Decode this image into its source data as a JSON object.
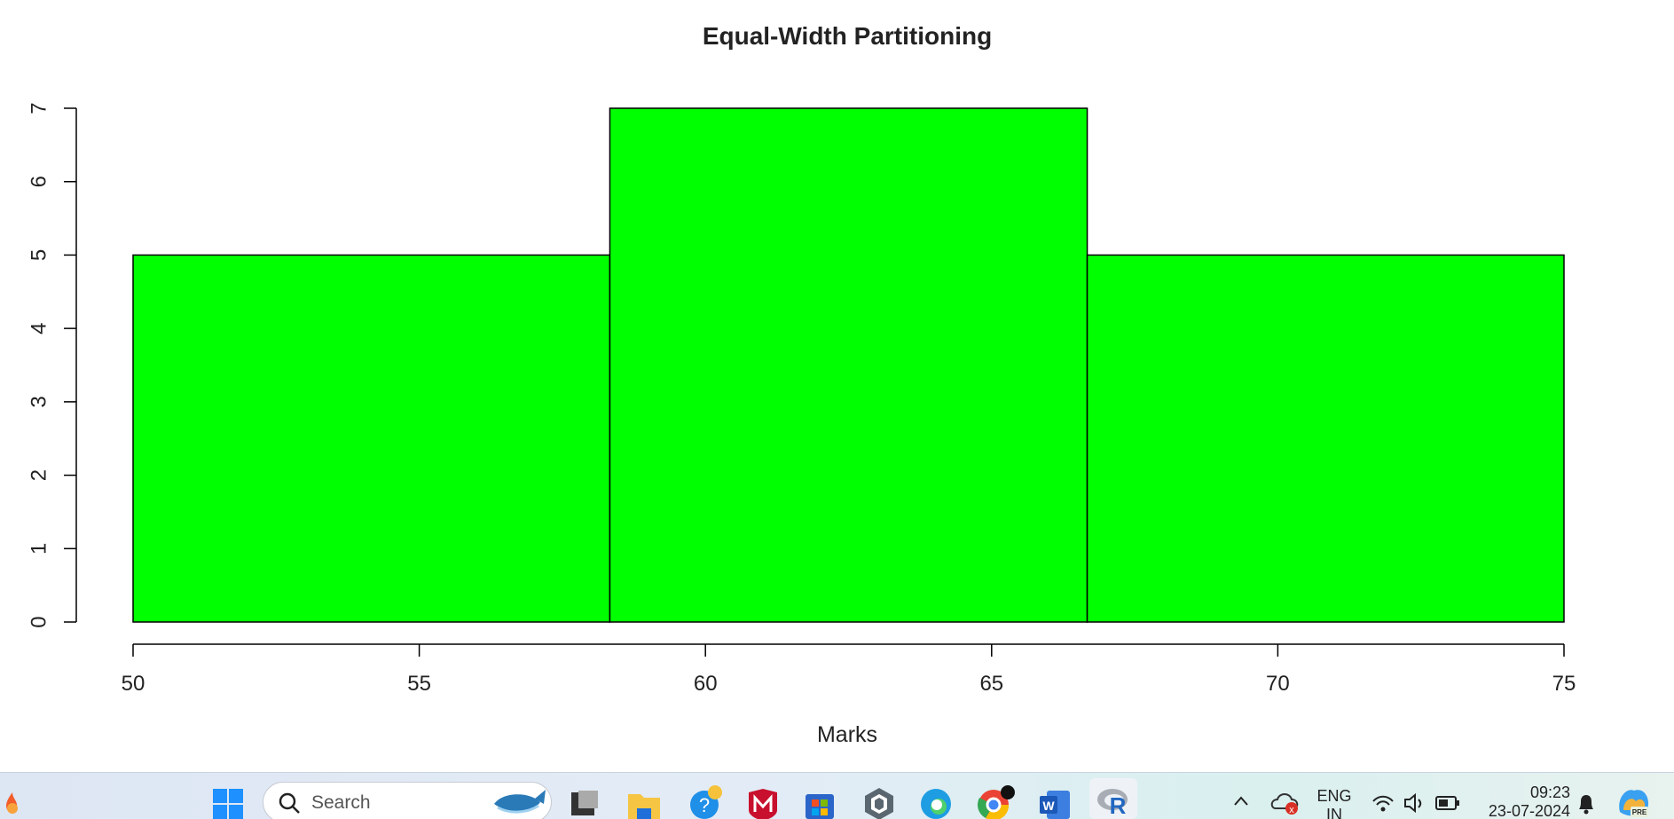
{
  "chart_data": {
    "type": "histogram",
    "title": "Equal-Width Partitioning",
    "xlabel": "Marks",
    "ylabel": "",
    "bins": [
      {
        "start": 50.0,
        "end": 58.33,
        "count": 5
      },
      {
        "start": 58.33,
        "end": 66.67,
        "count": 7
      },
      {
        "start": 66.67,
        "end": 75.0,
        "count": 5
      }
    ],
    "xlim": [
      50,
      75
    ],
    "ylim": [
      0,
      7
    ],
    "xticks": [
      "50",
      "55",
      "60",
      "65",
      "70",
      "75"
    ],
    "yticks": [
      "0",
      "1",
      "2",
      "3",
      "4",
      "5",
      "6",
      "7"
    ],
    "bar_color": "#00ff00",
    "grid": false,
    "legend": "none"
  },
  "taskbar": {
    "search_placeholder": "Search",
    "language": "ENG",
    "region": "IN",
    "time": "09:23",
    "date": "23-07-2024",
    "copilot_badge": "PRE",
    "icons": [
      "weather-icon",
      "windows-start-icon",
      "search-icon",
      "whale-widget-icon",
      "task-view-icon",
      "file-explorer-icon",
      "help-icon",
      "mcafee-icon",
      "microsoft-store-icon",
      "app-icon",
      "edge-icon",
      "chrome-icon",
      "word-icon",
      "r-icon",
      "chevron-up-icon",
      "onedrive-error-icon",
      "wifi-icon",
      "volume-icon",
      "battery-icon",
      "bell-icon",
      "copilot-icon"
    ]
  }
}
